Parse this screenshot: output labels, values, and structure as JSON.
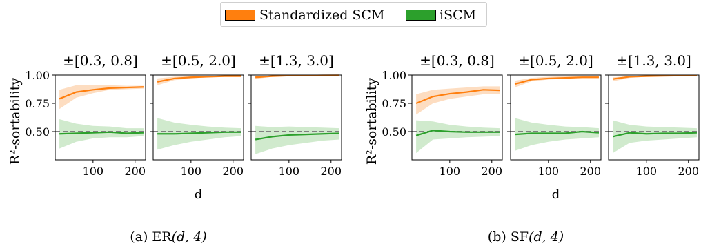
{
  "legend": {
    "items": [
      {
        "label": "Standardized SCM",
        "color": "#ff7f0e"
      },
      {
        "label": "iSCM",
        "color": "#2ca02c"
      }
    ]
  },
  "colors": {
    "standardized": "#ff7f0e",
    "standardized_band": "#fdd7b6",
    "iscm": "#2ca02c",
    "iscm_band": "#c8e6c4",
    "reference_line": "#7f7f7f"
  },
  "groups": [
    {
      "caption_prefix": "(a) ",
      "caption_model": "ER",
      "caption_args": "(d, 4)",
      "ylabel": "R²-sortability",
      "xlabel": "d"
    },
    {
      "caption_prefix": "(b) ",
      "caption_model": "SF",
      "caption_args": "(d, 4)",
      "ylabel": "R²-sortability",
      "xlabel": "d"
    }
  ],
  "chart_data": [
    {
      "type": "line",
      "group": "(a) ER(d, 4)",
      "title": "±[0.3, 0.8]",
      "xlabel": "",
      "ylabel": "R²-sortability",
      "xlim": [
        10,
        225
      ],
      "ylim": [
        0.25,
        1.0
      ],
      "xticks": [
        100,
        200
      ],
      "yticks": [
        0.5,
        0.75,
        1.0
      ],
      "ytick_labels": [
        "0.50",
        "0.75",
        "1.00"
      ],
      "reference_line_y": 0.5,
      "x": [
        20,
        60,
        100,
        140,
        180,
        220
      ],
      "series": [
        {
          "name": "Standardized SCM",
          "values": [
            0.79,
            0.85,
            0.87,
            0.885,
            0.89,
            0.895
          ],
          "lower": [
            0.7,
            0.8,
            0.84,
            0.87,
            0.875,
            0.88
          ],
          "upper": [
            0.87,
            0.91,
            0.91,
            0.91,
            0.905,
            0.905
          ]
        },
        {
          "name": "iSCM",
          "values": [
            0.48,
            0.485,
            0.49,
            0.495,
            0.485,
            0.49
          ],
          "lower": [
            0.35,
            0.41,
            0.44,
            0.45,
            0.45,
            0.46
          ],
          "upper": [
            0.61,
            0.57,
            0.55,
            0.545,
            0.53,
            0.53
          ]
        }
      ]
    },
    {
      "type": "line",
      "group": "(a) ER(d, 4)",
      "title": "±[0.5, 2.0]",
      "xlabel": "d",
      "ylabel": "",
      "xlim": [
        10,
        225
      ],
      "ylim": [
        0.25,
        1.0
      ],
      "xticks": [
        100,
        200
      ],
      "yticks": [
        0.5,
        0.75,
        1.0
      ],
      "reference_line_y": 0.5,
      "x": [
        20,
        60,
        100,
        140,
        180,
        220
      ],
      "series": [
        {
          "name": "Standardized SCM",
          "values": [
            0.94,
            0.97,
            0.98,
            0.985,
            0.99,
            0.99
          ],
          "lower": [
            0.91,
            0.955,
            0.97,
            0.98,
            0.985,
            0.985
          ],
          "upper": [
            0.97,
            0.985,
            0.99,
            0.995,
            0.995,
            0.995
          ]
        },
        {
          "name": "iSCM",
          "values": [
            0.48,
            0.48,
            0.485,
            0.49,
            0.495,
            0.495
          ],
          "lower": [
            0.34,
            0.38,
            0.41,
            0.43,
            0.45,
            0.46
          ],
          "upper": [
            0.62,
            0.58,
            0.56,
            0.545,
            0.535,
            0.53
          ]
        }
      ]
    },
    {
      "type": "line",
      "group": "(a) ER(d, 4)",
      "title": "±[1.3, 3.0]",
      "xlabel": "",
      "ylabel": "",
      "xlim": [
        10,
        225
      ],
      "ylim": [
        0.25,
        1.0
      ],
      "xticks": [
        100,
        200
      ],
      "yticks": [
        0.5,
        0.75,
        1.0
      ],
      "reference_line_y": 0.5,
      "x": [
        20,
        60,
        100,
        140,
        180,
        220
      ],
      "series": [
        {
          "name": "Standardized SCM",
          "values": [
            0.98,
            0.99,
            0.995,
            0.995,
            0.997,
            0.998
          ],
          "lower": [
            0.965,
            0.985,
            0.99,
            0.992,
            0.994,
            0.995
          ],
          "upper": [
            0.99,
            0.995,
            0.998,
            0.999,
            0.999,
            0.999
          ]
        },
        {
          "name": "iSCM",
          "values": [
            0.43,
            0.455,
            0.47,
            0.475,
            0.48,
            0.485
          ],
          "lower": [
            0.3,
            0.35,
            0.38,
            0.4,
            0.42,
            0.43
          ],
          "upper": [
            0.55,
            0.54,
            0.545,
            0.54,
            0.535,
            0.53
          ]
        }
      ]
    },
    {
      "type": "line",
      "group": "(b) SF(d, 4)",
      "title": "±[0.3, 0.8]",
      "xlabel": "",
      "ylabel": "R²-sortability",
      "xlim": [
        10,
        225
      ],
      "ylim": [
        0.25,
        1.0
      ],
      "xticks": [
        100,
        200
      ],
      "yticks": [
        0.5,
        0.75,
        1.0
      ],
      "ytick_labels": [
        "0.50",
        "0.75",
        "1.00"
      ],
      "reference_line_y": 0.5,
      "x": [
        20,
        60,
        100,
        140,
        180,
        220
      ],
      "series": [
        {
          "name": "Standardized SCM",
          "values": [
            0.75,
            0.81,
            0.835,
            0.85,
            0.87,
            0.865
          ],
          "lower": [
            0.65,
            0.75,
            0.79,
            0.81,
            0.83,
            0.83
          ],
          "upper": [
            0.83,
            0.87,
            0.88,
            0.89,
            0.9,
            0.9
          ]
        },
        {
          "name": "iSCM",
          "values": [
            0.465,
            0.51,
            0.5,
            0.495,
            0.495,
            0.495
          ],
          "lower": [
            0.31,
            0.43,
            0.44,
            0.45,
            0.455,
            0.46
          ],
          "upper": [
            0.6,
            0.59,
            0.56,
            0.545,
            0.535,
            0.53
          ]
        }
      ]
    },
    {
      "type": "line",
      "group": "(b) SF(d, 4)",
      "title": "±[0.5, 2.0]",
      "xlabel": "d",
      "ylabel": "",
      "xlim": [
        10,
        225
      ],
      "ylim": [
        0.25,
        1.0
      ],
      "xticks": [
        100,
        200
      ],
      "yticks": [
        0.5,
        0.75,
        1.0
      ],
      "reference_line_y": 0.5,
      "x": [
        20,
        60,
        100,
        140,
        180,
        220
      ],
      "series": [
        {
          "name": "Standardized SCM",
          "values": [
            0.92,
            0.96,
            0.97,
            0.975,
            0.98,
            0.98
          ],
          "lower": [
            0.89,
            0.945,
            0.96,
            0.967,
            0.975,
            0.975
          ],
          "upper": [
            0.95,
            0.975,
            0.985,
            0.99,
            0.99,
            0.99
          ]
        },
        {
          "name": "iSCM",
          "values": [
            0.475,
            0.485,
            0.485,
            0.485,
            0.5,
            0.49
          ],
          "lower": [
            0.33,
            0.38,
            0.41,
            0.43,
            0.44,
            0.45
          ],
          "upper": [
            0.62,
            0.58,
            0.56,
            0.545,
            0.54,
            0.53
          ]
        }
      ]
    },
    {
      "type": "line",
      "group": "(b) SF(d, 4)",
      "title": "±[1.3, 3.0]",
      "xlabel": "",
      "ylabel": "",
      "xlim": [
        10,
        225
      ],
      "ylim": [
        0.25,
        1.0
      ],
      "xticks": [
        100,
        200
      ],
      "yticks": [
        0.5,
        0.75,
        1.0
      ],
      "reference_line_y": 0.5,
      "x": [
        20,
        60,
        100,
        140,
        180,
        220
      ],
      "series": [
        {
          "name": "Standardized SCM",
          "values": [
            0.965,
            0.985,
            0.99,
            0.993,
            0.995,
            0.995
          ],
          "lower": [
            0.945,
            0.975,
            0.985,
            0.99,
            0.992,
            0.993
          ],
          "upper": [
            0.98,
            0.99,
            0.995,
            0.997,
            0.998,
            0.998
          ]
        },
        {
          "name": "iSCM",
          "values": [
            0.455,
            0.49,
            0.48,
            0.485,
            0.485,
            0.49
          ],
          "lower": [
            0.31,
            0.4,
            0.42,
            0.43,
            0.44,
            0.45
          ],
          "upper": [
            0.6,
            0.56,
            0.545,
            0.54,
            0.535,
            0.53
          ]
        }
      ]
    }
  ]
}
